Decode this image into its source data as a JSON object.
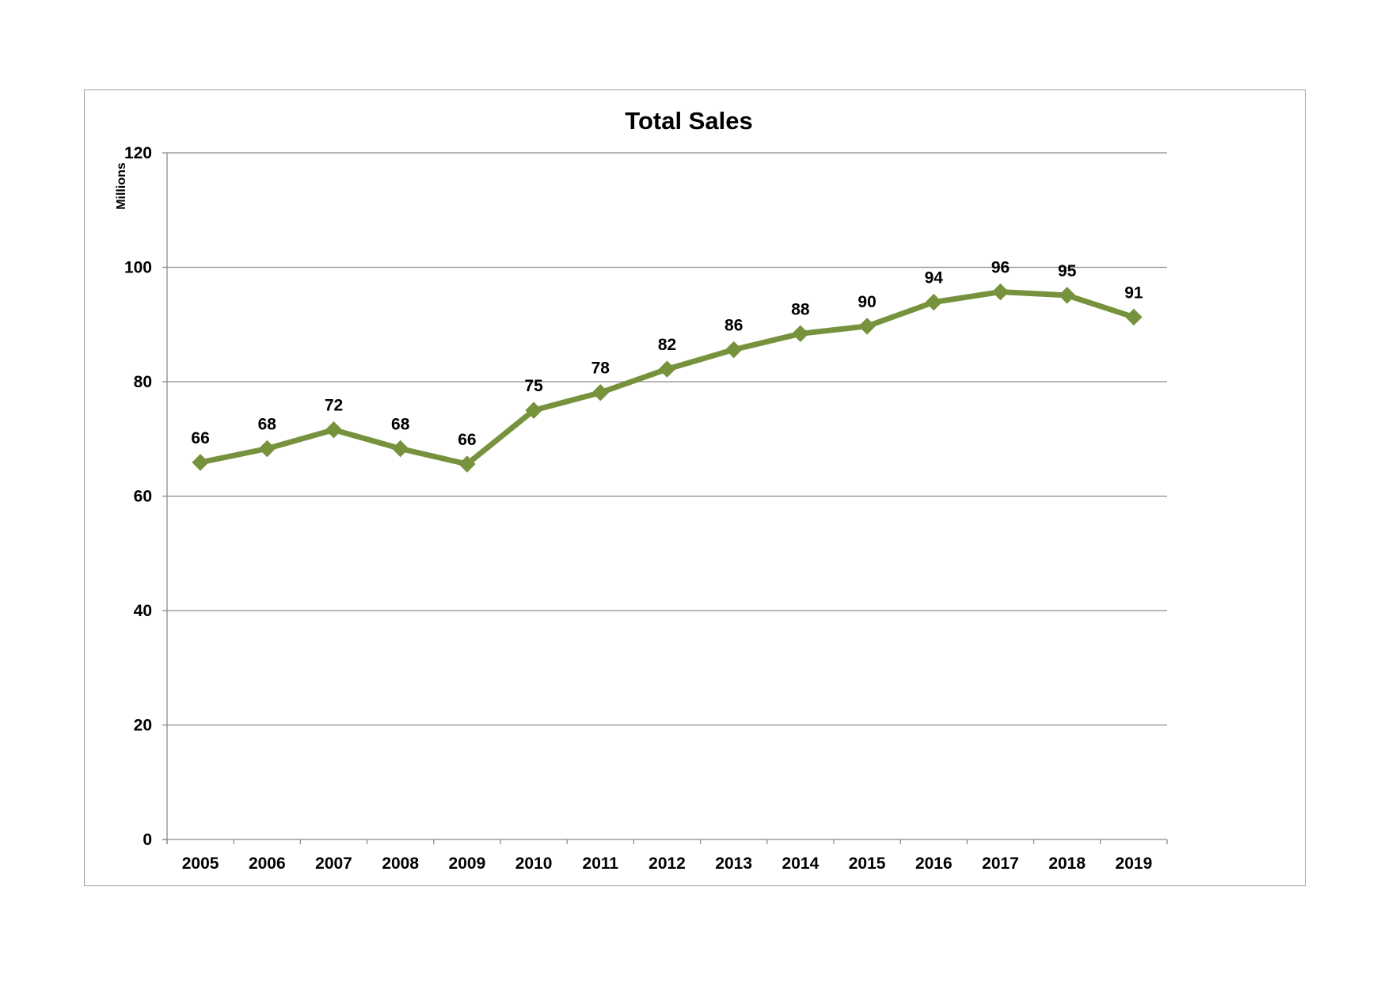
{
  "chart_data": {
    "type": "line",
    "title": "Total Sales",
    "xlabel": "",
    "ylabel": "",
    "y_unit": "Millions",
    "ylim": [
      0,
      120
    ],
    "y_ticks": [
      "0",
      "20",
      "40",
      "60",
      "80",
      "100",
      "120"
    ],
    "categories": [
      "2005",
      "2006",
      "2007",
      "2008",
      "2009",
      "2010",
      "2011",
      "2012",
      "2013",
      "2014",
      "2015",
      "2016",
      "2017",
      "2018",
      "2019"
    ],
    "series": [
      {
        "values": [
          65.9,
          68.3,
          71.6,
          68.3,
          65.6,
          75.0,
          78.1,
          82.2,
          85.6,
          88.4,
          89.7,
          93.9,
          95.7,
          95.1,
          91.3
        ],
        "labels": [
          "66",
          "68",
          "72",
          "68",
          "66",
          "75",
          "78",
          "82",
          "86",
          "88",
          "90",
          "94",
          "96",
          "95",
          "91"
        ],
        "color": "#76923c",
        "marker": "diamond"
      }
    ],
    "grid": true,
    "legend": "none"
  }
}
